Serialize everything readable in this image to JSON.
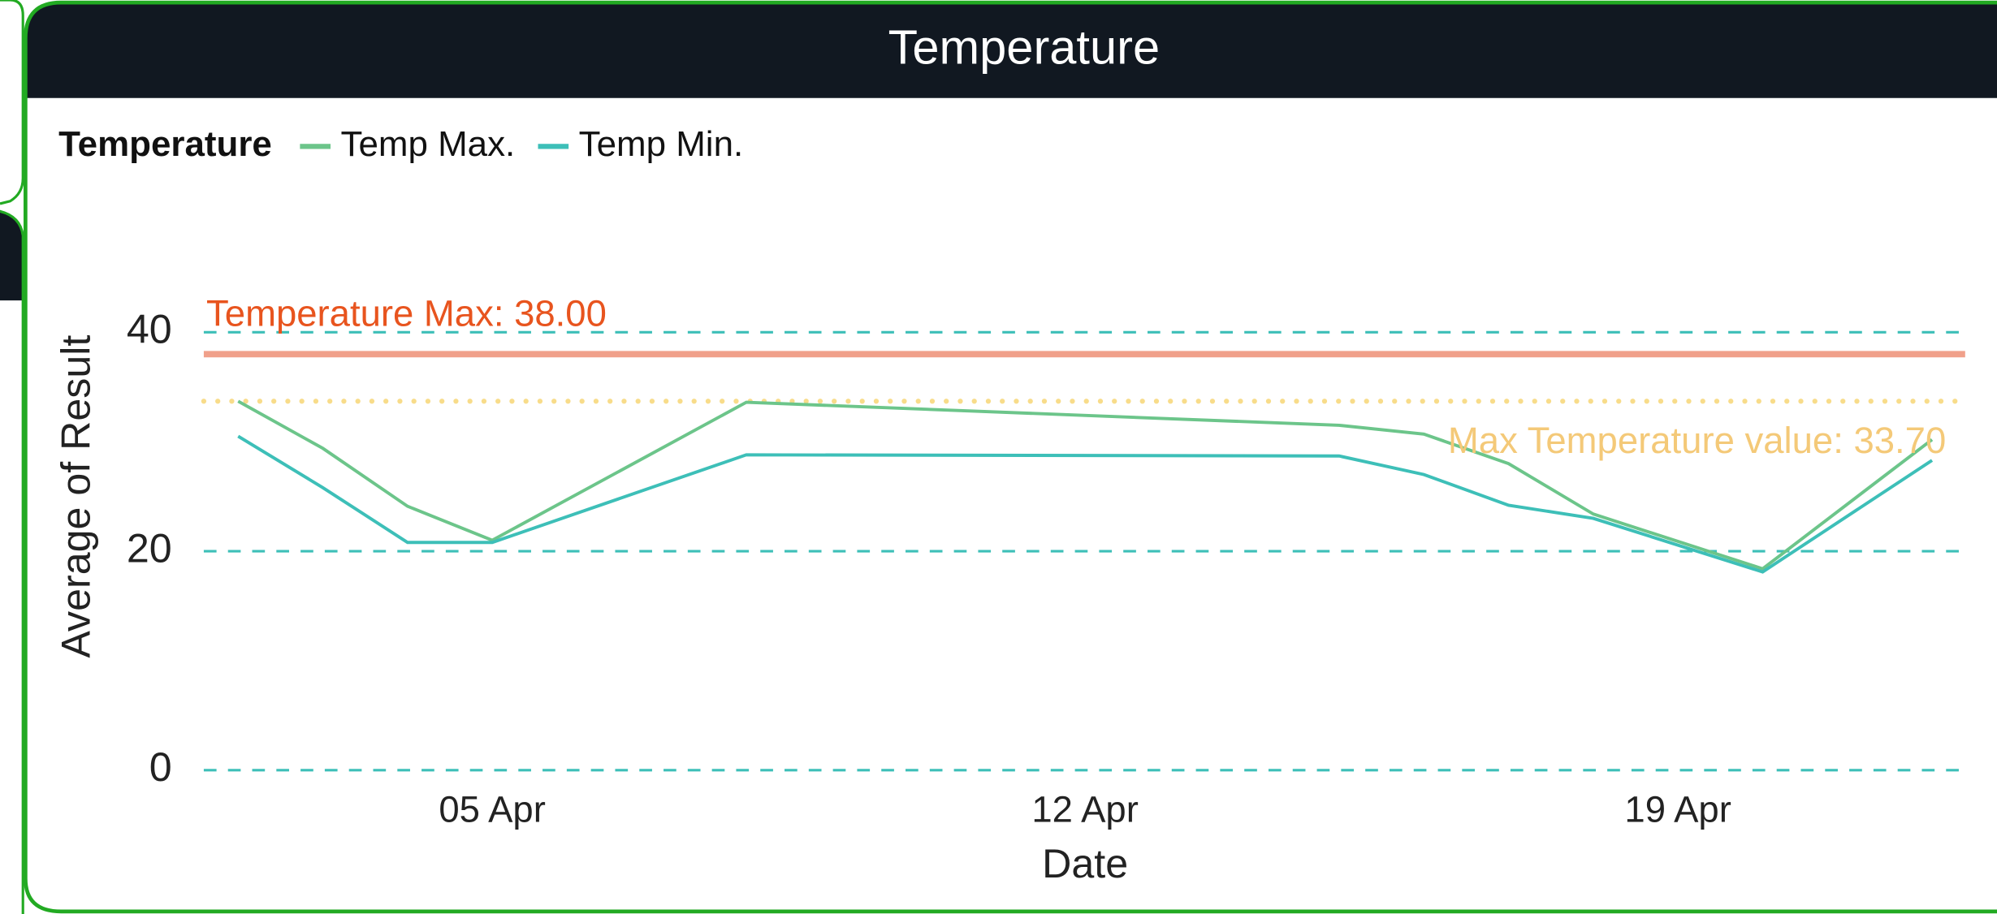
{
  "chart_data": {
    "type": "line",
    "title": "Temperature",
    "legend_title": "Temperature",
    "xlabel": "Date",
    "ylabel": "Average of Result",
    "x": [
      "02 Apr",
      "03 Apr",
      "04 Apr",
      "05 Apr",
      "08 Apr",
      "15 Apr",
      "16 Apr",
      "17 Apr",
      "18 Apr",
      "20 Apr",
      "22 Apr"
    ],
    "xlim": [
      "02 Apr",
      "22 Apr"
    ],
    "xticks": [
      "05 Apr",
      "12 Apr",
      "19 Apr"
    ],
    "series": [
      {
        "name": "Temp Max.",
        "color": "#6cc58a",
        "values": [
          33.7,
          29.4,
          24.1,
          21.0,
          33.6,
          31.5,
          30.7,
          28.0,
          23.4,
          18.4,
          30.2
        ]
      },
      {
        "name": "Temp Min.",
        "color": "#3dbfb8",
        "values": [
          30.5,
          25.8,
          20.8,
          20.8,
          28.8,
          28.7,
          27.0,
          24.2,
          23.0,
          18.1,
          28.3
        ]
      }
    ],
    "ylim": [
      0,
      40
    ],
    "yticks": [
      0,
      20,
      40
    ],
    "grid": true,
    "annotations": [
      {
        "label": "Temperature Max: 38.00",
        "value": 38,
        "color": "#f0a08a",
        "text_color": "#e8541e",
        "style": "solid"
      },
      {
        "label": "Max Temperature value: 33.70",
        "value": 33.7,
        "color": "#f8dc8a",
        "text_color": "#f4c978",
        "style": "dotted"
      }
    ]
  }
}
